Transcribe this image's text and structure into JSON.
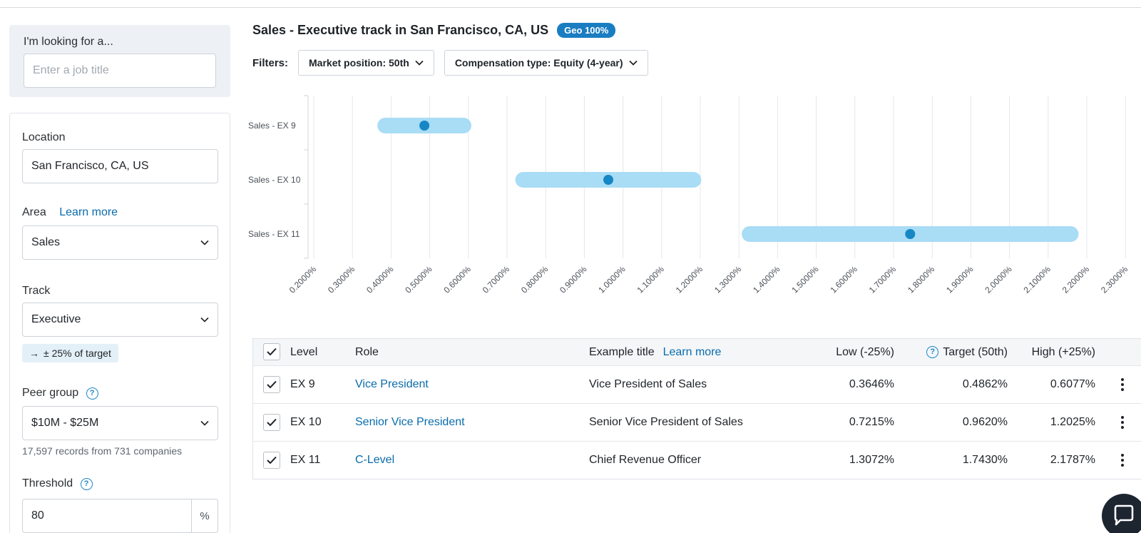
{
  "search": {
    "label": "I'm looking for a...",
    "placeholder": "Enter a job title"
  },
  "filters": {
    "location_label": "Location",
    "location_value": "San Francisco, CA, US",
    "area_label": "Area",
    "area_learn_more": "Learn more",
    "area_value": "Sales",
    "track_label": "Track",
    "track_value": "Executive",
    "target_badge": "± 25% of target",
    "target_badge_icon": "→",
    "peer_group_label": "Peer group",
    "peer_group_value": "$10M - $25M",
    "records_note": "17,597 records from 731 companies",
    "threshold_label": "Threshold",
    "threshold_value": "80",
    "threshold_unit": "%"
  },
  "main": {
    "title": "Sales - Executive track in San Francisco, CA, US",
    "geo_badge": "Geo 100%",
    "filters_label": "Filters:",
    "market_position": "Market position: 50th",
    "compensation_type": "Compensation type: Equity (4-year)"
  },
  "chart_data": {
    "type": "range",
    "categories": [
      "Sales - EX 9",
      "Sales - EX 10",
      "Sales - EX 11"
    ],
    "ranges": [
      {
        "low": 0.3646,
        "target": 0.4862,
        "high": 0.6077
      },
      {
        "low": 0.7215,
        "target": 0.962,
        "high": 1.2025
      },
      {
        "low": 1.3072,
        "target": 1.743,
        "high": 2.1787
      }
    ],
    "x_ticks": [
      "0.2000%",
      "0.3000%",
      "0.4000%",
      "0.5000%",
      "0.6000%",
      "0.7000%",
      "0.8000%",
      "0.9000%",
      "1.0000%",
      "1.1000%",
      "1.2000%",
      "1.3000%",
      "1.4000%",
      "1.5000%",
      "1.6000%",
      "1.7000%",
      "1.8000%",
      "1.9000%",
      "2.0000%",
      "2.1000%",
      "2.2000%",
      "2.3000%"
    ],
    "xlim": [
      0.2,
      2.3
    ],
    "grid": true,
    "colors": {
      "range": "#a9dcf5",
      "marker": "#1687c4",
      "grid": "#e4e7eb",
      "label": "#4a5058"
    }
  },
  "table": {
    "headers": {
      "level": "Level",
      "role": "Role",
      "example_title": "Example title",
      "learn_more": "Learn more",
      "low": "Low (-25%)",
      "target": "Target (50th)",
      "high": "High (+25%)"
    },
    "rows": [
      {
        "level": "EX 9",
        "role": "Vice President",
        "example": "Vice President of Sales",
        "low": "0.3646%",
        "target": "0.4862%",
        "high": "0.6077%"
      },
      {
        "level": "EX 10",
        "role": "Senior Vice President",
        "example": "Senior Vice President of Sales",
        "low": "0.7215%",
        "target": "0.9620%",
        "high": "1.2025%"
      },
      {
        "level": "EX 11",
        "role": "C-Level",
        "example": "Chief Revenue Officer",
        "low": "1.3072%",
        "target": "1.7430%",
        "high": "2.1787%"
      }
    ]
  },
  "colors": {
    "accent": "#0a6cab",
    "badge": "#1a7dc2"
  }
}
